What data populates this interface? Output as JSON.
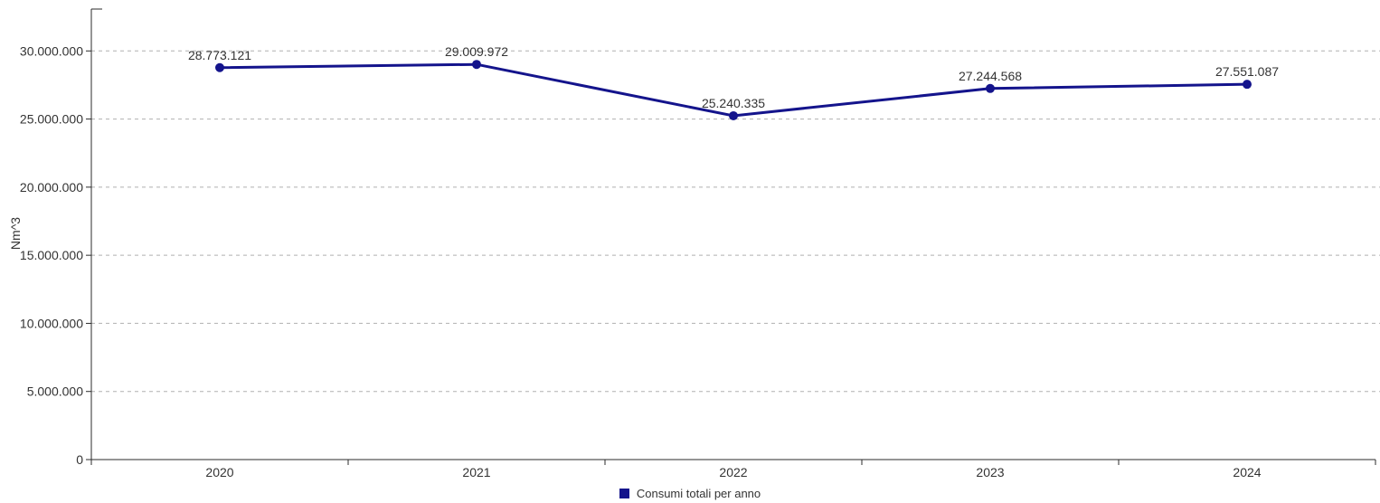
{
  "chart_data": {
    "type": "line",
    "title": "",
    "x_categories": [
      "2020",
      "2021",
      "2022",
      "2023",
      "2024"
    ],
    "series": [
      {
        "name": "Consumi totali per anno",
        "values": [
          28773121,
          29009972,
          25240335,
          27244568,
          27551087
        ],
        "value_labels": [
          "28.773.121",
          "29.009.972",
          "25.240.335",
          "27.244.568",
          "27.551.087"
        ],
        "color": "#14148C"
      }
    ],
    "xlabel": "",
    "ylabel": "Nm^3",
    "ylim": [
      0,
      30000000
    ],
    "y_ticks": [
      {
        "value": 0,
        "label": "0"
      },
      {
        "value": 5000000,
        "label": "5.000.000"
      },
      {
        "value": 10000000,
        "label": "10.000.000"
      },
      {
        "value": 15000000,
        "label": "15.000.000"
      },
      {
        "value": 20000000,
        "label": "20.000.000"
      },
      {
        "value": 25000000,
        "label": "25.000.000"
      },
      {
        "value": 30000000,
        "label": "30.000.000"
      }
    ],
    "grid": "horizontal-dashed",
    "legend_position": "bottom-center",
    "colors": {
      "line": "#14148C",
      "marker": "#14148C",
      "gridline": "#B0B0B0",
      "axis": "#2B2B2B",
      "text": "#333333"
    }
  },
  "legend": {
    "items": [
      {
        "label": "Consumi totali per anno",
        "swatch_color": "#14148C"
      }
    ]
  }
}
